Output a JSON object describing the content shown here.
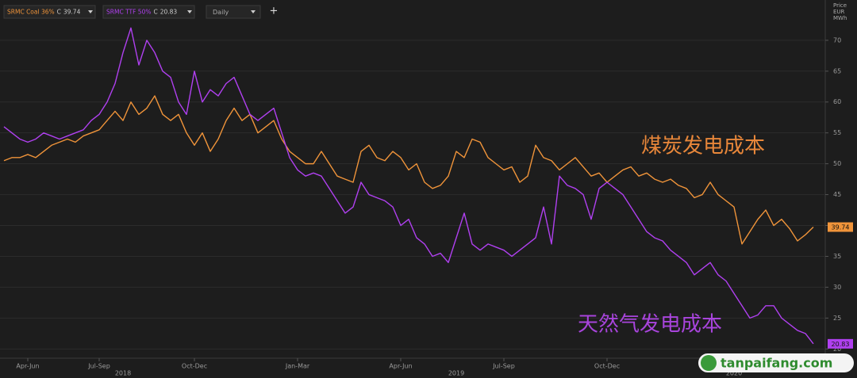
{
  "chart_data": {
    "type": "line",
    "toolbar": {
      "interval": "Daily",
      "add_button": "+",
      "close_prefix": "C"
    },
    "y_axis_label": [
      "Price",
      "EUR",
      "MWh"
    ],
    "categories": [
      null,
      null,
      null,
      "Apr-Jun",
      null,
      null,
      null,
      null,
      null,
      null,
      null,
      null,
      "Jul-Sep",
      null,
      null,
      null,
      null,
      null,
      null,
      null,
      null,
      null,
      null,
      null,
      "Oct-Dec",
      null,
      null,
      null,
      null,
      null,
      null,
      null,
      null,
      null,
      null,
      null,
      null,
      "Jan-Mar",
      null,
      null,
      null,
      null,
      null,
      null,
      null,
      null,
      null,
      null,
      null,
      null,
      "Apr-Jun",
      null,
      null,
      null,
      null,
      null,
      null,
      null,
      null,
      null,
      null,
      null,
      null,
      "Jul-Sep",
      null,
      null,
      null,
      null,
      null,
      null,
      null,
      null,
      null,
      null,
      null,
      null,
      "Oct-Dec",
      null,
      null,
      null,
      null,
      null,
      null,
      null,
      null,
      null,
      null,
      null,
      null,
      null,
      null,
      null,
      null,
      null,
      null,
      null,
      null,
      null,
      null,
      null,
      null,
      null,
      null
    ],
    "category_years": [
      null,
      null,
      null,
      null,
      null,
      null,
      null,
      null,
      null,
      null,
      null,
      null,
      null,
      null,
      null,
      "2018",
      null,
      null,
      null,
      null,
      null,
      null,
      null,
      null,
      null,
      null,
      null,
      null,
      null,
      null,
      null,
      null,
      null,
      null,
      null,
      null,
      null,
      null,
      null,
      null,
      null,
      null,
      null,
      null,
      null,
      null,
      null,
      null,
      null,
      null,
      null,
      null,
      null,
      null,
      null,
      null,
      null,
      "2019",
      null,
      null,
      null,
      null,
      null,
      null,
      null,
      null,
      null,
      null,
      null,
      null,
      null,
      null,
      null,
      null,
      null,
      null,
      null,
      null,
      null,
      null,
      null,
      null,
      null,
      null,
      null,
      null,
      null,
      null,
      null,
      null,
      null,
      null,
      "2020",
      null,
      null,
      null,
      null,
      null,
      null,
      null,
      null,
      null,
      null
    ],
    "series": [
      {
        "name": "SRMC Coal 36%",
        "color": "#f0943a",
        "values": [
          50.5,
          51,
          51,
          51.5,
          51,
          52,
          53,
          53.5,
          54,
          53.5,
          54.5,
          55,
          55.5,
          57,
          58.5,
          57,
          60,
          58,
          59,
          61,
          58,
          57,
          58,
          55,
          53,
          55,
          52,
          54,
          57,
          59,
          57,
          58,
          55,
          56,
          57,
          54,
          52,
          51,
          50,
          50,
          52,
          50,
          48,
          47.5,
          47,
          52,
          53,
          51,
          50.5,
          52,
          51,
          49,
          50,
          47,
          46,
          46.5,
          48,
          52,
          51,
          54,
          53.5,
          51,
          50,
          49,
          49.5,
          47,
          48,
          53,
          51,
          50.5,
          49,
          50,
          51,
          49.5,
          48,
          48.5,
          47,
          48,
          49,
          49.5,
          48,
          48.5,
          47.5,
          47,
          47.5,
          46.5,
          46,
          44.5,
          45,
          47,
          45,
          44,
          43,
          37,
          39,
          41,
          42.5,
          40,
          41,
          39.5,
          37.5,
          38.5,
          39.74
        ]
      },
      {
        "name": "SRMC TTF 50%",
        "color": "#b040f0",
        "values": [
          56,
          55,
          54,
          53.5,
          54,
          55,
          54.5,
          54,
          54.5,
          55,
          55.5,
          57,
          58,
          60,
          63,
          68,
          72,
          66,
          70,
          68,
          65,
          64,
          60,
          58,
          65,
          60,
          62,
          61,
          63,
          64,
          61,
          58,
          57,
          58,
          59,
          55,
          51,
          49,
          48,
          48.5,
          48,
          46,
          44,
          42,
          43,
          47,
          45,
          44.5,
          44,
          43,
          40,
          41,
          38,
          37,
          35,
          35.5,
          34,
          38,
          42,
          37,
          36,
          37,
          36.5,
          36,
          35,
          36,
          37,
          38,
          43,
          37,
          48,
          46.5,
          46,
          45,
          41,
          46,
          47,
          46,
          45,
          43,
          41,
          39,
          38,
          37.5,
          36,
          35,
          34,
          32,
          33,
          34,
          32,
          31,
          29,
          27,
          25,
          25.5,
          27,
          27,
          25,
          24,
          23,
          22.5,
          20.83
        ]
      }
    ],
    "annotations": [
      {
        "text": "煤炭发电成本",
        "color": "#e8873a"
      },
      {
        "text": "天然气发电成本",
        "color": "#a844dc"
      }
    ],
    "watermark": "tanpaifang.com",
    "ylim": [
      18.5,
      75.5
    ],
    "yticks": [
      20,
      25,
      30,
      35,
      40,
      45,
      50,
      55,
      60,
      65,
      70
    ],
    "grid": true
  }
}
